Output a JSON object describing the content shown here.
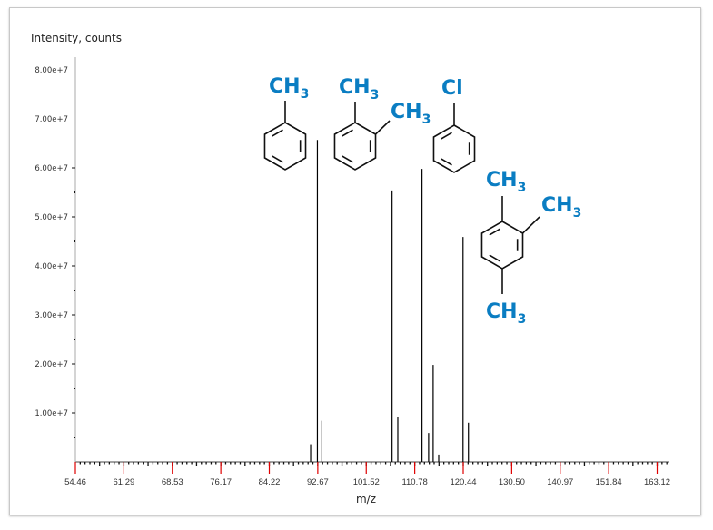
{
  "chart_data": {
    "type": "bar",
    "title": "",
    "xlabel": "m/z",
    "ylabel": "Intensity, counts",
    "x_scale": "sqrt",
    "xlim": [
      54.46,
      163.12
    ],
    "ylim": [
      0,
      80000000
    ],
    "x_ticks": [
      "54.46",
      "61.29",
      "68.53",
      "76.17",
      "84.22",
      "92.67",
      "101.52",
      "110.78",
      "120.44",
      "130.50",
      "140.97",
      "151.84",
      "163.12"
    ],
    "y_ticks": [
      "1.00e+7",
      "2.00e+7",
      "3.00e+7",
      "4.00e+7",
      "5.00e+7",
      "6.00e+7",
      "7.00e+7",
      "8.00e+7"
    ],
    "grid": false,
    "peaks": [
      {
        "mz": 91.4,
        "intensity": 3600000
      },
      {
        "mz": 92.6,
        "intensity": 65700000
      },
      {
        "mz": 93.4,
        "intensity": 8400000
      },
      {
        "mz": 106.4,
        "intensity": 55400000
      },
      {
        "mz": 107.5,
        "intensity": 9100000
      },
      {
        "mz": 112.2,
        "intensity": 59800000
      },
      {
        "mz": 113.5,
        "intensity": 5900000
      },
      {
        "mz": 114.4,
        "intensity": 19800000
      },
      {
        "mz": 115.5,
        "intensity": 1500000
      },
      {
        "mz": 120.4,
        "intensity": 45900000
      },
      {
        "mz": 121.5,
        "intensity": 8000000
      }
    ],
    "peak_color": "#000000",
    "major_tick_color": "#e00000",
    "annotations": {
      "color": "#0a7dc2",
      "toluene": {
        "ch3": "CH",
        "sub": "3"
      },
      "xylene": {
        "ch3_a": "CH",
        "ch3_b": "CH",
        "sub": "3"
      },
      "chlorobenzene": {
        "cl": "Cl"
      },
      "trimethylbenzene": {
        "ch3_a": "CH",
        "ch3_b": "CH",
        "ch3_c": "CH",
        "sub": "3"
      }
    }
  }
}
